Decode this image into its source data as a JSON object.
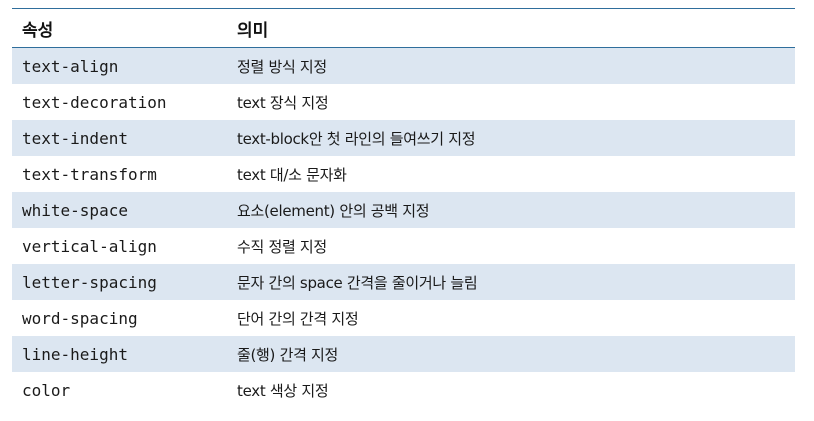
{
  "header": {
    "col1": "속성",
    "col2": "의미"
  },
  "rows": [
    {
      "property": "text-align",
      "meaning": "정렬 방식 지정"
    },
    {
      "property": "text-decoration",
      "meaning": "text 장식 지정"
    },
    {
      "property": "text-indent",
      "meaning": "text-block안 첫 라인의 들여쓰기 지정"
    },
    {
      "property": "text-transform",
      "meaning": "text 대/소 문자화"
    },
    {
      "property": "white-space",
      "meaning": "요소(element) 안의 공백 지정"
    },
    {
      "property": "vertical-align",
      "meaning": "수직 정렬 지정"
    },
    {
      "property": "letter-spacing",
      "meaning": "문자 간의 space 간격을 줄이거나 늘림"
    },
    {
      "property": "word-spacing",
      "meaning": "단어 간의 간격 지정"
    },
    {
      "property": "line-height",
      "meaning": "줄(행) 간격 지정"
    },
    {
      "property": "color",
      "meaning": "text 색상 지정"
    }
  ],
  "colors": {
    "rule": "#2f6e9c",
    "shade": "#dce6f1"
  }
}
